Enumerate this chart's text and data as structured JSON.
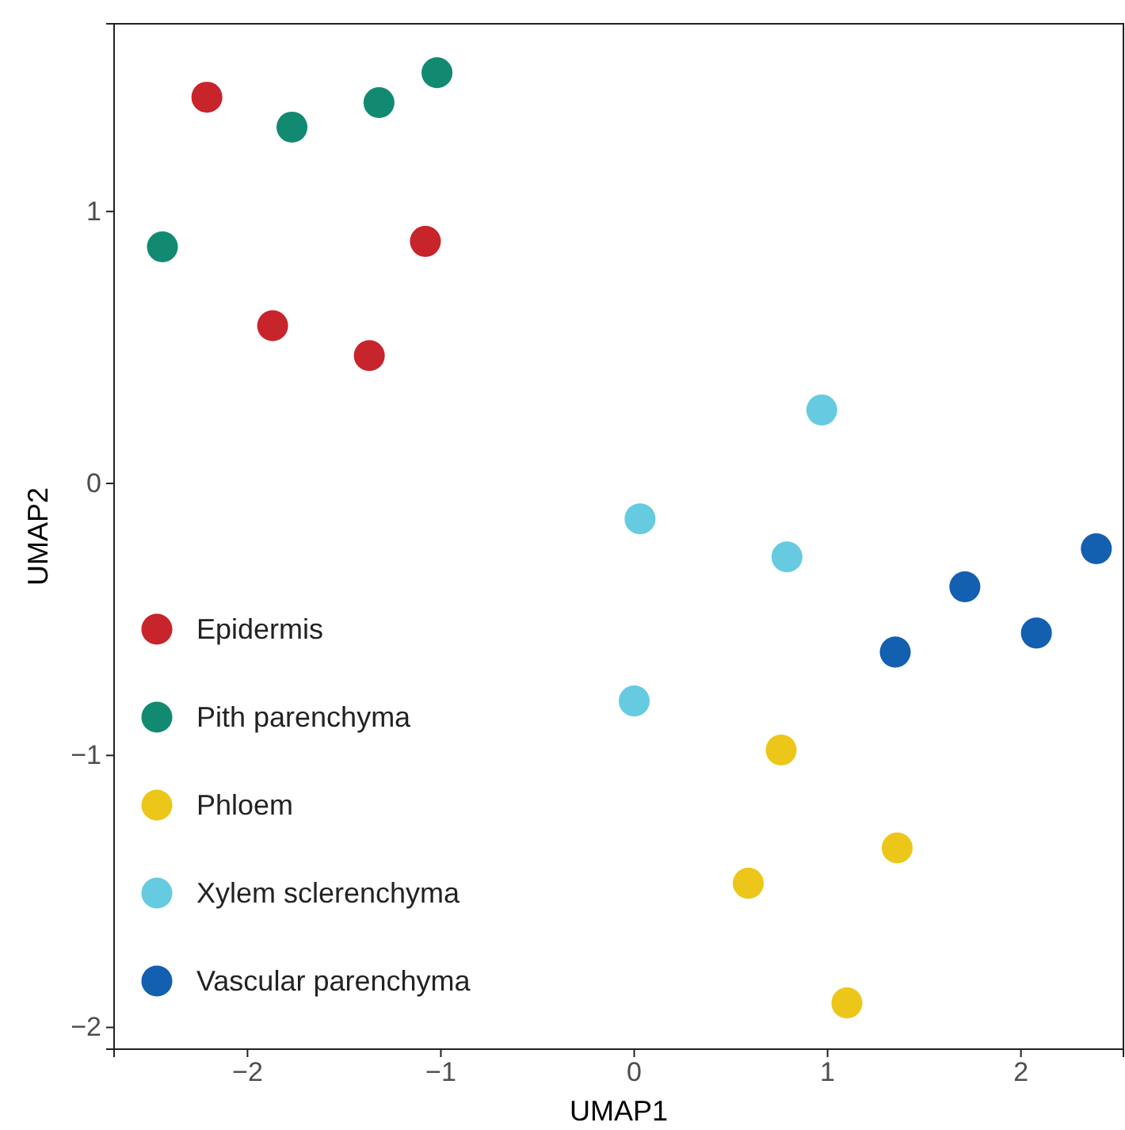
{
  "chart_data": {
    "type": "scatter",
    "xlabel": "UMAP1",
    "ylabel": "UMAP2",
    "xlim": [
      -2.69,
      2.53
    ],
    "ylim": [
      -2.08,
      1.69
    ],
    "xticks": [
      -2,
      -1,
      0,
      1,
      2
    ],
    "yticks": [
      -2,
      -1,
      0,
      1
    ],
    "grid": false,
    "legend": "bottom left",
    "marker": "circle",
    "series": [
      {
        "name": "Epidermis",
        "color": "#c8242b",
        "x": [
          -2.21,
          -1.08,
          -1.87,
          -1.37
        ],
        "values": [
          1.42,
          0.89,
          0.58,
          0.47
        ]
      },
      {
        "name": "Pith parenchyma",
        "color": "#128a72",
        "x": [
          -2.44,
          -1.77,
          -1.32,
          -1.02
        ],
        "values": [
          0.87,
          1.31,
          1.4,
          1.51
        ]
      },
      {
        "name": "Phloem",
        "color": "#ecc71a",
        "x": [
          0.76,
          1.36,
          0.59,
          1.1
        ],
        "values": [
          -0.98,
          -1.34,
          -1.47,
          -1.91
        ]
      },
      {
        "name": "Xylem sclerenchyma",
        "color": "#66cbe0",
        "x": [
          0.97,
          0.03,
          0.79,
          0.0
        ],
        "values": [
          0.27,
          -0.13,
          -0.27,
          -0.8
        ]
      },
      {
        "name": "Vascular parenchyma",
        "color": "#135fb0",
        "x": [
          2.39,
          1.71,
          2.08,
          1.35
        ],
        "values": [
          -0.24,
          -0.38,
          -0.55,
          -0.62
        ]
      }
    ]
  }
}
